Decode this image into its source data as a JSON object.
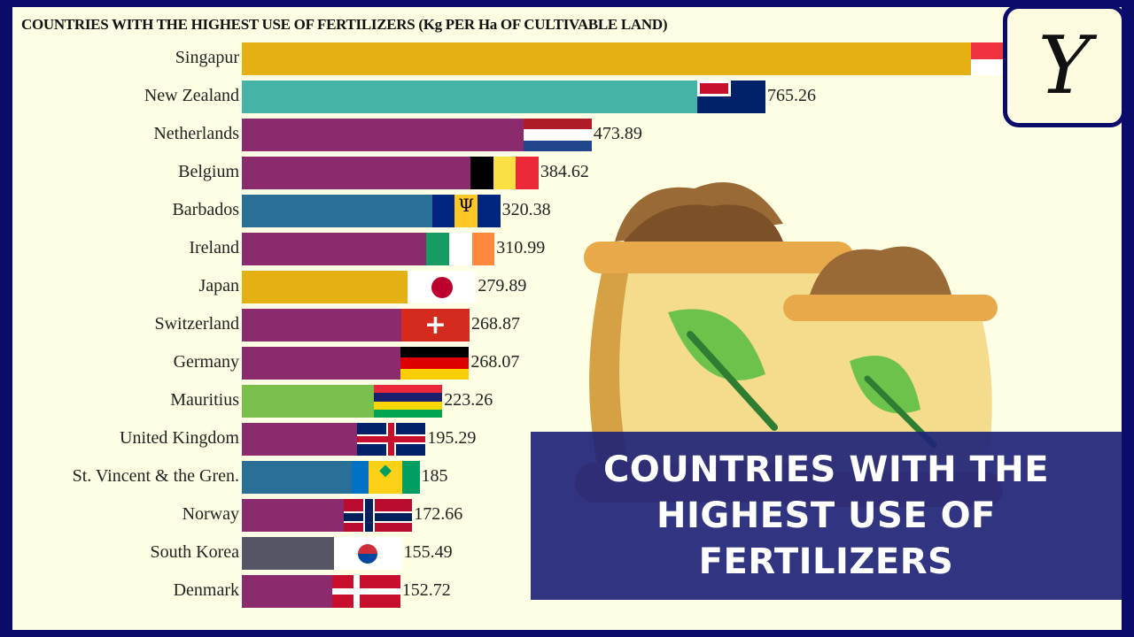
{
  "chart_data": {
    "type": "bar",
    "orientation": "horizontal",
    "title": "COUNTRIES WITH THE HIGHEST USE OF FERTILIZERS (Kg PER Ha OF CULTIVABLE LAND)",
    "categories": [
      "Singapur",
      "New Zealand",
      "Netherlands",
      "Belgium",
      "Barbados",
      "Ireland",
      "Japan",
      "Switzerland",
      "Germany",
      "Mauritius",
      "United Kingdom",
      "St. Vincent & the Gren.",
      "Norway",
      "South Korea",
      "Denmark"
    ],
    "values": [
      null,
      765.26,
      473.89,
      384.62,
      320.38,
      310.99,
      279.89,
      268.87,
      268.07,
      223.26,
      195.29,
      185,
      172.66,
      155.49,
      152.72
    ],
    "value_labels": [
      "",
      "765.26",
      "473.89",
      "384.62",
      "320.38",
      "310.99",
      "279.89",
      "268.87",
      "268.07",
      "223.26",
      "195.29",
      "185",
      "172.66",
      "155.49",
      "152.72"
    ],
    "colors": [
      "#e5b013",
      "#45b3a6",
      "#8b2a6c",
      "#8b2a6c",
      "#2a7096",
      "#8b2a6c",
      "#e5b013",
      "#8b2a6c",
      "#8b2a6c",
      "#7bbf4d",
      "#8b2a6c",
      "#2a7096",
      "#8b2a6c",
      "#555566",
      "#8b2a6c"
    ],
    "flags": [
      "singapore",
      "new-zealand",
      "netherlands",
      "belgium",
      "barbados",
      "ireland",
      "japan",
      "switzerland",
      "germany",
      "mauritius",
      "united-kingdom",
      "st-vincent",
      "norway",
      "south-korea",
      "denmark"
    ]
  },
  "banner": {
    "text": "COUNTRIES WITH THE HIGHEST USE OF FERTILIZERS"
  },
  "logo": {
    "text": "Y"
  },
  "colors": {
    "frame": "#0b0b6b",
    "background": "#fefee4"
  }
}
